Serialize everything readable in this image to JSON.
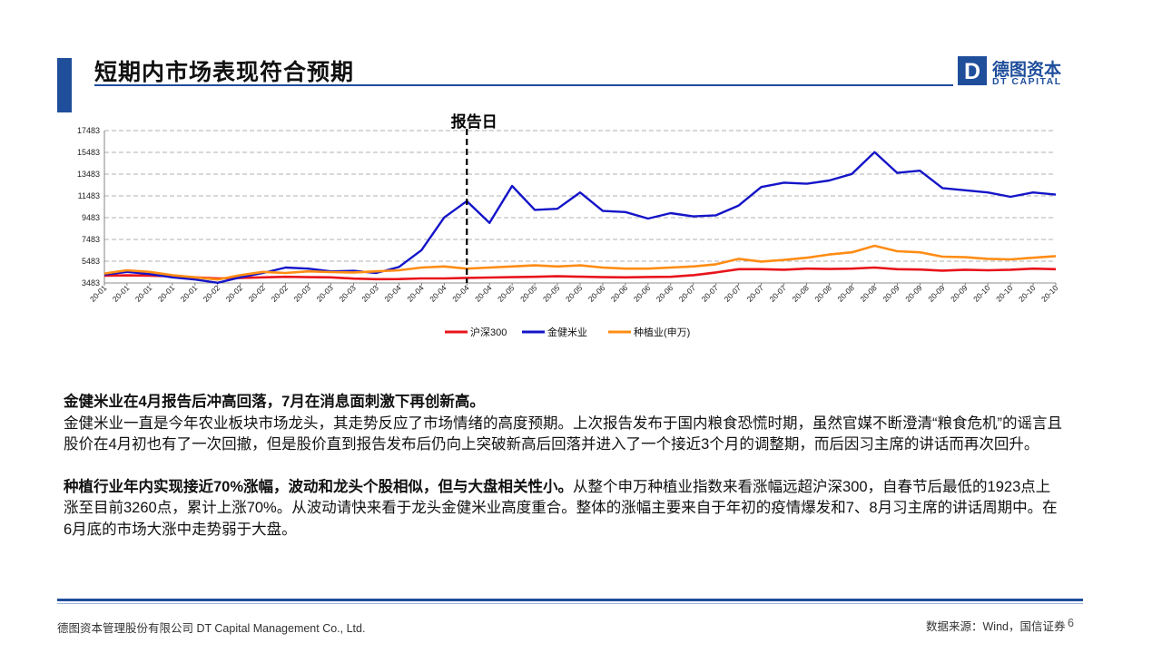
{
  "header": {
    "title": "短期内市场表现符合预期"
  },
  "logo": {
    "cn": "德图资本",
    "en": "DT CAPITAL",
    "mark": "D"
  },
  "chart_data": {
    "type": "line",
    "annotation": "报告日",
    "annotation_x_index": 16,
    "y_ticks": [
      3483,
      5483,
      7483,
      9483,
      11483,
      13483,
      15483,
      17483
    ],
    "ylim": [
      3483,
      17483
    ],
    "grid": true,
    "legend_position": "bottom",
    "x": [
      "20-01",
      "20-01",
      "20-01",
      "20-01",
      "20-01",
      "20-02",
      "20-02",
      "20-02",
      "20-02",
      "20-03",
      "20-03",
      "20-03",
      "20-03",
      "20-04",
      "20-04",
      "20-04",
      "20-04",
      "20-04",
      "20-05",
      "20-05",
      "20-05",
      "20-05",
      "20-06",
      "20-06",
      "20-06",
      "20-06",
      "20-07",
      "20-07",
      "20-07",
      "20-07",
      "20-07",
      "20-08",
      "20-08",
      "20-08",
      "20-08",
      "20-09",
      "20-09",
      "20-09",
      "20-09",
      "20-10",
      "20-10",
      "20-10",
      "20-10"
    ],
    "series": [
      {
        "name": "沪深300",
        "color": "#e8141b",
        "values": [
          4150,
          4180,
          4160,
          4100,
          4000,
          3900,
          3950,
          4000,
          4050,
          4020,
          4000,
          3880,
          3830,
          3840,
          3900,
          3900,
          3950,
          3980,
          4020,
          4050,
          4100,
          4060,
          4020,
          4000,
          4030,
          4050,
          4200,
          4450,
          4750,
          4750,
          4700,
          4800,
          4770,
          4800,
          4900,
          4750,
          4720,
          4620,
          4700,
          4650,
          4700,
          4800,
          4750
        ]
      },
      {
        "name": "金健米业",
        "color": "#1414c8",
        "values": [
          4250,
          4500,
          4300,
          4000,
          3800,
          3500,
          4000,
          4400,
          4900,
          4800,
          4550,
          4600,
          4400,
          4950,
          6500,
          9500,
          11000,
          9000,
          12400,
          10200,
          10300,
          11800,
          10100,
          10000,
          9400,
          9900,
          9600,
          9700,
          10600,
          12300,
          12700,
          12600,
          12900,
          13500,
          15500,
          13600,
          13800,
          12200,
          12000,
          11800,
          11400,
          11800,
          11600
        ]
      },
      {
        "name": "种植业(申万)",
        "color": "#ff8c14",
        "values": [
          4350,
          4650,
          4500,
          4200,
          4000,
          3800,
          4200,
          4500,
          4400,
          4550,
          4480,
          4450,
          4550,
          4650,
          4900,
          5000,
          4800,
          4900,
          5000,
          5100,
          5000,
          5100,
          4900,
          4800,
          4800,
          4900,
          5000,
          5200,
          5700,
          5450,
          5600,
          5800,
          6100,
          6300,
          6900,
          6400,
          6300,
          5900,
          5850,
          5700,
          5650,
          5800,
          5950
        ]
      }
    ]
  },
  "text": {
    "p1_bold": "金健米业在4月报告后冲高回落，7月在消息面刺激下再创新高。",
    "p1_body": "金健米业一直是今年农业板块市场龙头，其走势反应了市场情绪的高度预期。上次报告发布于国内粮食恐慌时期，虽然官媒不断澄清“粮食危机”的谣言且股价在4月初也有了一次回撤，但是股价直到报告发布后仍向上突破新高后回落并进入了一个接近3个月的调整期，而后因习主席的讲话而再次回升。",
    "p2_bold": "种植行业年内实现接近70%涨幅，波动和龙头个股相似，但与大盘相关性小。",
    "p2_body": "从整个申万种植业指数来看涨幅远超沪深300，自春节后最低的1923点上涨至目前3260点，累计上涨70%。从波动请快来看于龙头金健米业高度重合。整体的涨幅主要来自于年初的疫情爆发和7、8月习主席的讲话周期中。在6月底的市场大涨中走势弱于大盘。"
  },
  "footer": {
    "company": "德图资本管理股份有限公司 DT Capital Management Co., Ltd.",
    "source": "数据来源：Wind，国信证券",
    "page": "6"
  }
}
